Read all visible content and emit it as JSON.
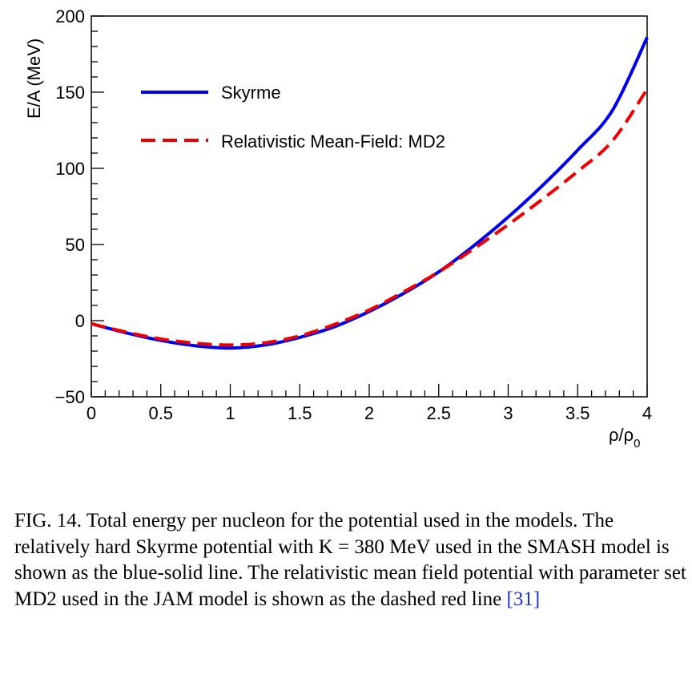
{
  "chart_data": {
    "type": "line",
    "xlabel": "ρ/ρ",
    "xlabel_sub": "0",
    "ylabel": "E/A (MeV)",
    "xlim": [
      0,
      4
    ],
    "ylim": [
      -50,
      200
    ],
    "x_ticks": [
      "0",
      "0.5",
      "1",
      "1.5",
      "2",
      "2.5",
      "3",
      "3.5",
      "4"
    ],
    "y_ticks": [
      "−50",
      "0",
      "50",
      "100",
      "150",
      "200"
    ],
    "grid": false,
    "legend_position": "top-left",
    "series": [
      {
        "name": "Skyrme",
        "color": "#0000ee",
        "style": "solid",
        "x": [
          0.0,
          0.25,
          0.5,
          0.75,
          1.0,
          1.25,
          1.5,
          1.75,
          2.0,
          2.25,
          2.5,
          2.75,
          3.0,
          3.25,
          3.5,
          3.75,
          4.0
        ],
        "y": [
          -2,
          -8,
          -13,
          -16.5,
          -18,
          -16,
          -11,
          -4,
          6,
          18,
          32,
          49,
          68,
          89,
          112,
          138,
          186
        ]
      },
      {
        "name": "Relativistic Mean-Field: MD2",
        "color": "#ee0000",
        "style": "dashed",
        "x": [
          0.0,
          0.25,
          0.5,
          0.75,
          1.0,
          1.25,
          1.5,
          1.75,
          2.0,
          2.25,
          2.5,
          2.75,
          3.0,
          3.25,
          3.5,
          3.75,
          4.0
        ],
        "y": [
          -2,
          -7.5,
          -12,
          -14.8,
          -16,
          -14.5,
          -10,
          -2.5,
          7,
          19,
          32,
          47,
          63,
          80,
          98,
          118,
          152
        ]
      }
    ]
  },
  "caption": {
    "text": "FIG. 14.  Total energy per nucleon for the potential used in the models.  The relatively hard Skyrme potential with K = 380 MeV used in the SMASH model is shown as the blue-solid line. The relativistic mean field potential with parameter set MD2 used in the JAM model is shown as the dashed red line ",
    "ref": "[31]"
  }
}
